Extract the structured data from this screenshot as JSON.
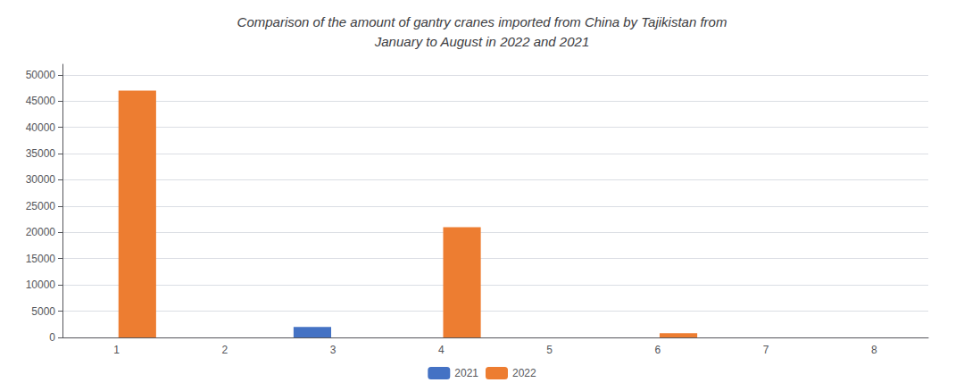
{
  "chart_data": {
    "type": "bar",
    "title": "Comparison of the amount of gantry cranes imported from China by Tajikistan from\nJanuary to August in 2022 and 2021",
    "categories": [
      "1",
      "2",
      "3",
      "4",
      "5",
      "6",
      "7",
      "8"
    ],
    "series": [
      {
        "name": "2021",
        "color": "#4472C4",
        "values": [
          0,
          0,
          2000,
          0,
          0,
          0,
          0,
          0
        ]
      },
      {
        "name": "2022",
        "color": "#ED7D31",
        "values": [
          47000,
          0,
          0,
          21000,
          0,
          800,
          0,
          0
        ]
      }
    ],
    "ylim": [
      0,
      52000
    ],
    "yticks": [
      0,
      5000,
      10000,
      15000,
      20000,
      25000,
      30000,
      35000,
      40000,
      45000,
      50000
    ],
    "grid": true,
    "legend": "bottom"
  }
}
